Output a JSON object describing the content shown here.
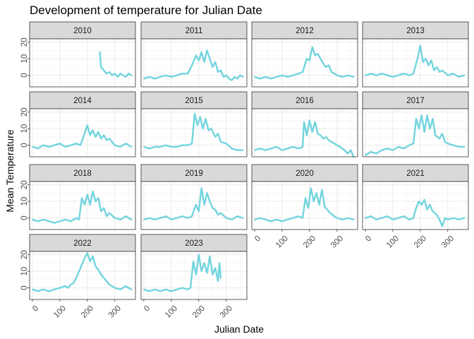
{
  "chart_data": {
    "type": "line",
    "title": "Development of temperature for Julian Date",
    "xlabel": "Julian Date",
    "ylabel": "Mean Temperature",
    "xlim": [
      -10,
      375
    ],
    "ylim": [
      -7,
      22
    ],
    "x_ticks": [
      0,
      100,
      200,
      300
    ],
    "x_tick_labels": [
      "0",
      "100",
      "200",
      "300"
    ],
    "y_ticks": [
      0,
      10,
      20
    ],
    "y_tick_labels": [
      "0",
      "10",
      "20"
    ],
    "line_color": "#72D4DE",
    "grid": true,
    "legend": "none",
    "facets": [
      "2010",
      "2011",
      "2012",
      "2013",
      "2014",
      "2015",
      "2016",
      "2017",
      "2018",
      "2019",
      "2020",
      "2021",
      "2022",
      "2023"
    ],
    "series": [
      {
        "name": "2010",
        "x": [
          245,
          250,
          260,
          270,
          280,
          290,
          300,
          310,
          320,
          330,
          340,
          350,
          360
        ],
        "y": [
          14,
          5,
          3,
          1,
          2,
          0,
          1,
          -1,
          1,
          0,
          -1,
          1,
          0
        ]
      },
      {
        "name": "2011",
        "x": [
          1,
          20,
          40,
          60,
          80,
          100,
          120,
          140,
          160,
          175,
          190,
          200,
          210,
          220,
          230,
          240,
          250,
          260,
          270,
          280,
          290,
          300,
          310,
          320,
          330,
          340,
          350,
          360
        ],
        "y": [
          -2,
          -1,
          -2,
          -1,
          0,
          -1,
          0,
          1,
          1,
          6,
          12,
          9,
          14,
          8,
          15,
          10,
          5,
          8,
          2,
          3,
          -1,
          0,
          -2,
          -3,
          -1,
          -2,
          0,
          -1
        ]
      },
      {
        "name": "2012",
        "x": [
          1,
          20,
          40,
          60,
          80,
          100,
          120,
          140,
          160,
          175,
          190,
          200,
          210,
          220,
          230,
          240,
          250,
          260,
          270,
          280,
          290,
          300,
          320,
          340,
          360
        ],
        "y": [
          -1,
          -2,
          -1,
          -2,
          -1,
          0,
          -1,
          0,
          1,
          2,
          10,
          9,
          17,
          12,
          13,
          10,
          7,
          5,
          6,
          2,
          1,
          0,
          -1,
          0,
          -1
        ]
      },
      {
        "name": "2013",
        "x": [
          1,
          20,
          40,
          60,
          80,
          100,
          120,
          140,
          160,
          175,
          190,
          200,
          210,
          220,
          230,
          240,
          250,
          260,
          270,
          280,
          300,
          320,
          340,
          360
        ],
        "y": [
          0,
          1,
          0,
          1,
          0,
          -1,
          0,
          1,
          0,
          1,
          10,
          18,
          8,
          10,
          6,
          9,
          3,
          5,
          2,
          3,
          0,
          1,
          -1,
          0
        ]
      },
      {
        "name": "2014",
        "x": [
          1,
          20,
          40,
          60,
          80,
          100,
          120,
          140,
          160,
          175,
          190,
          200,
          210,
          220,
          230,
          240,
          250,
          260,
          270,
          280,
          290,
          300,
          320,
          340,
          360
        ],
        "y": [
          -1,
          -2,
          0,
          -1,
          0,
          1,
          -1,
          0,
          1,
          0,
          7,
          12,
          6,
          9,
          5,
          8,
          4,
          6,
          3,
          4,
          2,
          0,
          -1,
          1,
          -1
        ]
      },
      {
        "name": "2015",
        "x": [
          1,
          20,
          40,
          60,
          80,
          100,
          120,
          140,
          160,
          175,
          185,
          195,
          205,
          215,
          225,
          235,
          245,
          260,
          270,
          280,
          300,
          320,
          340,
          360
        ],
        "y": [
          -1,
          -2,
          -1,
          -1,
          0,
          -1,
          -1,
          0,
          0,
          1,
          19,
          12,
          17,
          10,
          16,
          9,
          10,
          5,
          7,
          2,
          1,
          -2,
          -3,
          -3
        ]
      },
      {
        "name": "2016",
        "x": [
          1,
          20,
          40,
          60,
          80,
          100,
          120,
          140,
          160,
          175,
          180,
          190,
          200,
          210,
          220,
          230,
          240,
          250,
          260,
          270,
          280,
          290,
          300,
          320,
          340,
          350,
          360
        ],
        "y": [
          -3,
          -2,
          -3,
          -2,
          -1,
          -3,
          -2,
          -1,
          -2,
          -1,
          14,
          6,
          15,
          8,
          14,
          7,
          6,
          4,
          5,
          3,
          2,
          1,
          0,
          -2,
          -5,
          -3,
          -7
        ]
      },
      {
        "name": "2017",
        "x": [
          1,
          20,
          40,
          60,
          80,
          100,
          120,
          140,
          160,
          175,
          185,
          195,
          205,
          215,
          225,
          235,
          245,
          255,
          270,
          280,
          290,
          300,
          320,
          340,
          360
        ],
        "y": [
          -6,
          -4,
          -5,
          -3,
          -2,
          -3,
          -1,
          -2,
          0,
          1,
          16,
          10,
          18,
          8,
          18,
          10,
          16,
          6,
          4,
          7,
          2,
          1,
          0,
          -1,
          -1
        ]
      },
      {
        "name": "2018",
        "x": [
          1,
          20,
          40,
          60,
          80,
          100,
          120,
          140,
          160,
          170,
          180,
          190,
          200,
          210,
          220,
          230,
          240,
          250,
          260,
          270,
          280,
          300,
          320,
          340,
          360
        ],
        "y": [
          -1,
          -2,
          -1,
          -2,
          -3,
          -2,
          -1,
          -2,
          0,
          -1,
          12,
          8,
          14,
          8,
          16,
          10,
          12,
          4,
          6,
          1,
          3,
          0,
          -1,
          1,
          -1
        ]
      },
      {
        "name": "2019",
        "x": [
          1,
          20,
          40,
          60,
          80,
          100,
          120,
          140,
          160,
          175,
          190,
          200,
          210,
          220,
          230,
          240,
          250,
          260,
          270,
          280,
          300,
          320,
          340,
          360
        ],
        "y": [
          -1,
          0,
          -1,
          0,
          1,
          -1,
          0,
          1,
          0,
          1,
          8,
          4,
          18,
          8,
          15,
          10,
          6,
          5,
          2,
          3,
          0,
          -1,
          1,
          0
        ]
      },
      {
        "name": "2020",
        "x": [
          1,
          20,
          40,
          60,
          80,
          100,
          120,
          140,
          160,
          175,
          185,
          195,
          205,
          215,
          225,
          235,
          245,
          255,
          265,
          275,
          290,
          300,
          320,
          340,
          360
        ],
        "y": [
          -1,
          0,
          -1,
          -2,
          -1,
          -2,
          -1,
          0,
          1,
          0,
          12,
          6,
          18,
          10,
          15,
          8,
          17,
          7,
          5,
          3,
          1,
          0,
          -1,
          0,
          -1
        ]
      },
      {
        "name": "2021",
        "x": [
          1,
          20,
          40,
          60,
          80,
          100,
          120,
          140,
          160,
          175,
          185,
          195,
          205,
          215,
          225,
          235,
          245,
          260,
          270,
          280,
          290,
          300,
          320,
          340,
          360
        ],
        "y": [
          0,
          1,
          -1,
          0,
          1,
          -1,
          0,
          1,
          -1,
          0,
          6,
          10,
          8,
          11,
          5,
          8,
          4,
          2,
          -1,
          -5,
          0,
          -1,
          0,
          -1,
          0
        ]
      },
      {
        "name": "2022",
        "x": [
          1,
          20,
          40,
          60,
          80,
          100,
          120,
          130,
          140,
          150,
          160,
          170,
          180,
          190,
          200,
          210,
          220,
          230,
          240,
          250,
          260,
          270,
          280,
          300,
          320,
          340,
          360
        ],
        "y": [
          -1,
          -2,
          -1,
          -2,
          -1,
          0,
          1,
          0,
          2,
          3,
          6,
          10,
          14,
          18,
          21,
          16,
          19,
          13,
          11,
          8,
          6,
          4,
          2,
          0,
          -1,
          1,
          -1
        ]
      },
      {
        "name": "2023",
        "x": [
          1,
          20,
          40,
          60,
          80,
          100,
          120,
          140,
          160,
          170,
          180,
          190,
          200,
          210,
          220,
          230,
          240,
          250,
          260,
          270,
          275,
          280
        ],
        "y": [
          -1,
          -2,
          -1,
          -2,
          -1,
          -2,
          -1,
          0,
          -1,
          0,
          16,
          8,
          20,
          10,
          15,
          9,
          19,
          8,
          12,
          4,
          15,
          6
        ]
      }
    ]
  }
}
